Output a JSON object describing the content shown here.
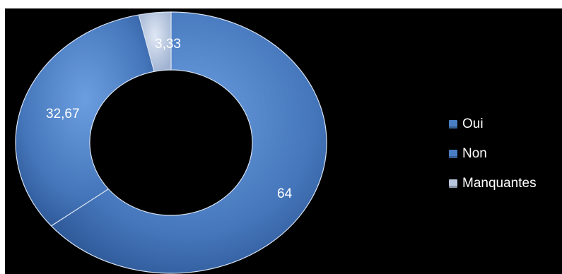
{
  "chart_data": {
    "type": "pie",
    "title": "",
    "categories": [
      "Oui",
      "Non",
      "Manquantes"
    ],
    "values": [
      64,
      32.67,
      3.33
    ],
    "data_labels": [
      "64",
      "32,67",
      "3,33"
    ],
    "colors": [
      "#4a7ec4",
      "#4a7ec4",
      "#b9c7de"
    ],
    "donut": true,
    "legend_position": "right"
  }
}
